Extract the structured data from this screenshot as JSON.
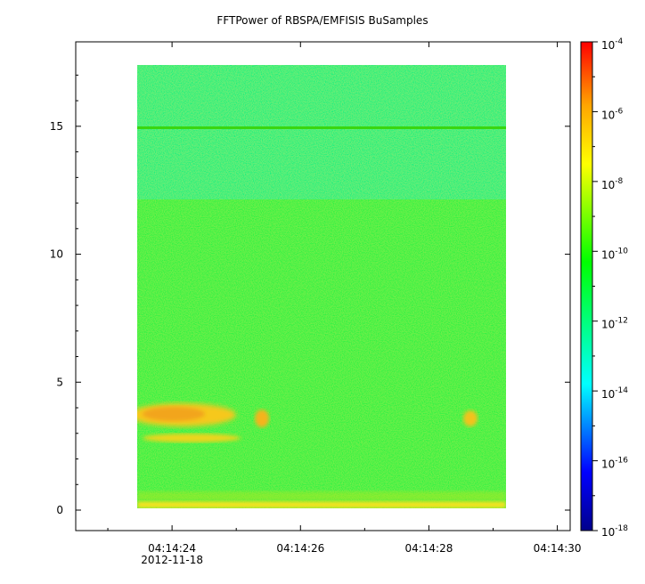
{
  "chart_data": {
    "type": "heatmap",
    "title": "FFTPower of RBSPA/EMFISIS  BuSamples",
    "xlabel": "",
    "ylabel": "",
    "x_range": [
      "04:14:22.5",
      "04:14:30.2"
    ],
    "data_x_range": [
      "04:14:23.1",
      "04:14:29.1"
    ],
    "y_range": [
      -0.8,
      18.3
    ],
    "data_y_range": [
      0,
      17.5
    ],
    "x_ticks": [
      {
        "label": "04:14:24",
        "sublabel": "2012-11-18"
      },
      {
        "label": "04:14:26",
        "sublabel": ""
      },
      {
        "label": "04:14:28",
        "sublabel": ""
      },
      {
        "label": "04:14:30",
        "sublabel": ""
      }
    ],
    "y_ticks": [
      "0",
      "5",
      "10",
      "15"
    ],
    "colorbar": {
      "scale": "log",
      "min": 1e-18,
      "max": 0.0001,
      "ticks": [
        {
          "base": "10",
          "exp": "-4"
        },
        {
          "base": "10",
          "exp": "-6"
        },
        {
          "base": "10",
          "exp": "-8"
        },
        {
          "base": "10",
          "exp": "-10"
        },
        {
          "base": "10",
          "exp": "-12"
        },
        {
          "base": "10",
          "exp": "-14"
        },
        {
          "base": "10",
          "exp": "-16"
        },
        {
          "base": "10",
          "exp": "-18"
        }
      ],
      "colormap": [
        "#00008b",
        "#0000ff",
        "#00ffff",
        "#00ff00",
        "#ffff00",
        "#ffa500",
        "#ff0000"
      ]
    },
    "regions": [
      {
        "description": "background upper band",
        "y_range": [
          12.2,
          17.5
        ],
        "level": -12.3
      },
      {
        "description": "background main band",
        "y_range": [
          0,
          12.2
        ],
        "level": -10.3
      },
      {
        "description": "line at 15",
        "y_range": [
          14.95,
          15.05
        ],
        "level": -9.6
      },
      {
        "description": "low-frequency bright strip",
        "y_range": [
          0,
          0.2
        ],
        "level": -8.2
      },
      {
        "description": "enhancement blob",
        "x_range": [
          "04:14:23.1",
          "04:14:24.8"
        ],
        "y_range": [
          3.0,
          4.0
        ],
        "level": -7.5
      },
      {
        "description": "enhancement blob",
        "x_range": [
          "04:14:23.1",
          "04:14:24.8"
        ],
        "y_range": [
          2.4,
          2.8
        ],
        "level": -7.9
      },
      {
        "description": "burst",
        "x": "04:14:25.1",
        "y": 3.5,
        "level": -7.4
      },
      {
        "description": "burst",
        "x": "04:14:28.5",
        "y": 3.5,
        "level": -7.6
      }
    ]
  }
}
